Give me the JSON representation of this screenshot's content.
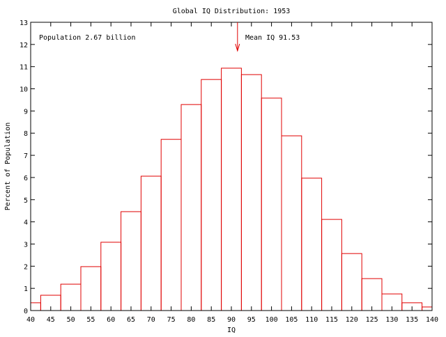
{
  "chart_data": {
    "type": "bar",
    "title": "Global IQ Distribution: 1953",
    "xlabel": "IQ",
    "ylabel": "Percent of Population",
    "xlim": [
      40,
      140
    ],
    "ylim": [
      0,
      13
    ],
    "grid": false,
    "xticks": [
      40,
      45,
      50,
      55,
      60,
      65,
      70,
      75,
      80,
      85,
      90,
      95,
      100,
      105,
      110,
      115,
      120,
      125,
      130,
      135,
      140
    ],
    "yticks": [
      0,
      1,
      2,
      3,
      4,
      5,
      6,
      7,
      8,
      9,
      10,
      11,
      12,
      13
    ],
    "bins": [
      {
        "from": 40,
        "to": 42.5,
        "value": 0.35
      },
      {
        "from": 42.5,
        "to": 47.5,
        "value": 0.69
      },
      {
        "from": 47.5,
        "to": 52.5,
        "value": 1.19
      },
      {
        "from": 52.5,
        "to": 57.5,
        "value": 1.98
      },
      {
        "from": 57.5,
        "to": 62.5,
        "value": 3.08
      },
      {
        "from": 62.5,
        "to": 67.5,
        "value": 4.46
      },
      {
        "from": 67.5,
        "to": 72.5,
        "value": 6.06
      },
      {
        "from": 72.5,
        "to": 77.5,
        "value": 7.72
      },
      {
        "from": 77.5,
        "to": 82.5,
        "value": 9.29
      },
      {
        "from": 82.5,
        "to": 87.5,
        "value": 10.42
      },
      {
        "from": 87.5,
        "to": 92.5,
        "value": 10.93
      },
      {
        "from": 92.5,
        "to": 97.5,
        "value": 10.64
      },
      {
        "from": 97.5,
        "to": 102.5,
        "value": 9.58
      },
      {
        "from": 102.5,
        "to": 107.5,
        "value": 7.88
      },
      {
        "from": 107.5,
        "to": 112.5,
        "value": 5.97
      },
      {
        "from": 112.5,
        "to": 117.5,
        "value": 4.11
      },
      {
        "from": 117.5,
        "to": 122.5,
        "value": 2.57
      },
      {
        "from": 122.5,
        "to": 127.5,
        "value": 1.44
      },
      {
        "from": 127.5,
        "to": 132.5,
        "value": 0.75
      },
      {
        "from": 132.5,
        "to": 137.5,
        "value": 0.35
      },
      {
        "from": 137.5,
        "to": 140,
        "value": 0.16
      }
    ],
    "annotations": [
      {
        "text": "Population 2.67 billion",
        "x": 42,
        "y": 12.4
      },
      {
        "text": "Mean IQ 91.53",
        "x": 91.53,
        "arrow": true
      }
    ],
    "colors": {
      "bars": "#e00000",
      "axes": "#000000",
      "arrow": "#e00000"
    }
  }
}
